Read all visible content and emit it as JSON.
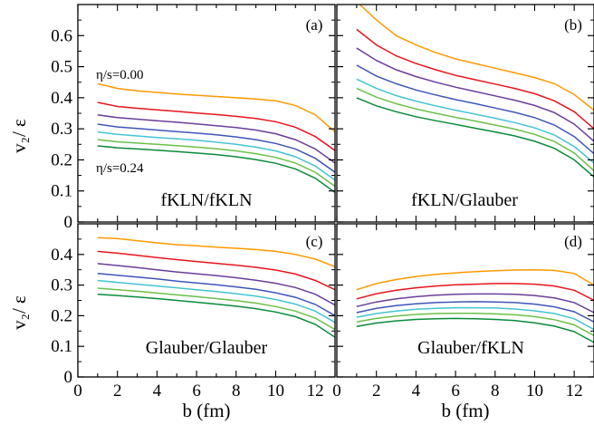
{
  "figure": {
    "xlabel": "b (fm)",
    "ylabel": "v₂/ ε",
    "top_yticks": [
      "0",
      "0.1",
      "0.2",
      "0.3",
      "0.4",
      "0.5",
      "0.6"
    ],
    "bottom_yticks": [
      "0",
      "0.1",
      "0.2",
      "0.3",
      "0.4"
    ],
    "xticks_left": [
      "0",
      "2",
      "4",
      "6",
      "8",
      "10",
      "12"
    ],
    "xticks_right": [
      "0",
      "2",
      "4",
      "6",
      "8",
      "10",
      "12"
    ],
    "eta_top": "η/s=0.00",
    "eta_bottom": "η/s=0.24",
    "series_colors": [
      "#ff9900",
      "#e8141e",
      "#6a3d9a",
      "#3f55b8",
      "#44c4d4",
      "#6cc04a",
      "#0b8a3a"
    ]
  },
  "chart_data": [
    {
      "type": "line",
      "panel": "(a)",
      "name": "fKLN/fKLN",
      "xlim": [
        0,
        13
      ],
      "ylim": [
        0,
        0.7
      ],
      "x": [
        1,
        2,
        3,
        4,
        5,
        6,
        7,
        8,
        9,
        10,
        11,
        12,
        13
      ],
      "series": [
        {
          "values": [
            0.445,
            0.43,
            0.422,
            0.417,
            0.412,
            0.408,
            0.404,
            0.4,
            0.396,
            0.39,
            0.375,
            0.345,
            0.29
          ]
        },
        {
          "values": [
            0.385,
            0.372,
            0.366,
            0.361,
            0.356,
            0.351,
            0.346,
            0.34,
            0.333,
            0.323,
            0.305,
            0.275,
            0.23
          ]
        },
        {
          "values": [
            0.345,
            0.336,
            0.331,
            0.326,
            0.321,
            0.316,
            0.31,
            0.304,
            0.296,
            0.284,
            0.265,
            0.235,
            0.19
          ]
        },
        {
          "values": [
            0.315,
            0.306,
            0.301,
            0.296,
            0.291,
            0.286,
            0.281,
            0.274,
            0.265,
            0.253,
            0.235,
            0.205,
            0.16
          ]
        },
        {
          "values": [
            0.29,
            0.282,
            0.277,
            0.272,
            0.268,
            0.263,
            0.257,
            0.25,
            0.241,
            0.229,
            0.21,
            0.18,
            0.135
          ]
        },
        {
          "values": [
            0.265,
            0.258,
            0.254,
            0.25,
            0.246,
            0.241,
            0.236,
            0.229,
            0.22,
            0.208,
            0.19,
            0.16,
            0.115
          ]
        },
        {
          "values": [
            0.245,
            0.239,
            0.235,
            0.231,
            0.227,
            0.222,
            0.217,
            0.21,
            0.201,
            0.189,
            0.171,
            0.141,
            0.095
          ]
        }
      ]
    },
    {
      "type": "line",
      "panel": "(b)",
      "name": "fKLN/Glauber",
      "xlim": [
        0,
        13
      ],
      "ylim": [
        0,
        0.7
      ],
      "x": [
        1,
        2,
        3,
        4,
        5,
        6,
        7,
        8,
        9,
        10,
        11,
        12,
        13
      ],
      "series": [
        {
          "values": [
            0.71,
            0.65,
            0.6,
            0.57,
            0.545,
            0.525,
            0.51,
            0.495,
            0.48,
            0.465,
            0.445,
            0.41,
            0.36
          ]
        },
        {
          "values": [
            0.62,
            0.57,
            0.535,
            0.51,
            0.49,
            0.472,
            0.458,
            0.444,
            0.43,
            0.413,
            0.39,
            0.355,
            0.3
          ]
        },
        {
          "values": [
            0.56,
            0.52,
            0.49,
            0.468,
            0.45,
            0.434,
            0.42,
            0.406,
            0.392,
            0.375,
            0.352,
            0.315,
            0.26
          ]
        },
        {
          "values": [
            0.505,
            0.47,
            0.445,
            0.425,
            0.409,
            0.394,
            0.381,
            0.367,
            0.353,
            0.336,
            0.312,
            0.275,
            0.22
          ]
        },
        {
          "values": [
            0.46,
            0.43,
            0.407,
            0.389,
            0.374,
            0.36,
            0.347,
            0.334,
            0.32,
            0.303,
            0.28,
            0.243,
            0.19
          ]
        },
        {
          "values": [
            0.43,
            0.402,
            0.381,
            0.364,
            0.35,
            0.337,
            0.325,
            0.312,
            0.299,
            0.282,
            0.259,
            0.222,
            0.165
          ]
        },
        {
          "values": [
            0.4,
            0.374,
            0.355,
            0.339,
            0.326,
            0.314,
            0.302,
            0.29,
            0.277,
            0.26,
            0.237,
            0.2,
            0.145
          ]
        }
      ]
    },
    {
      "type": "line",
      "panel": "(c)",
      "name": "Glauber/Glauber",
      "xlim": [
        0,
        13
      ],
      "ylim": [
        0,
        0.5
      ],
      "x": [
        1,
        2,
        3,
        4,
        5,
        6,
        7,
        8,
        9,
        10,
        11,
        12,
        13
      ],
      "series": [
        {
          "values": [
            0.455,
            0.452,
            0.445,
            0.438,
            0.432,
            0.428,
            0.424,
            0.42,
            0.416,
            0.41,
            0.4,
            0.385,
            0.36
          ]
        },
        {
          "values": [
            0.41,
            0.404,
            0.397,
            0.39,
            0.383,
            0.377,
            0.371,
            0.365,
            0.358,
            0.349,
            0.336,
            0.315,
            0.285
          ]
        },
        {
          "values": [
            0.37,
            0.364,
            0.357,
            0.35,
            0.343,
            0.337,
            0.331,
            0.324,
            0.316,
            0.306,
            0.292,
            0.27,
            0.235
          ]
        },
        {
          "values": [
            0.338,
            0.332,
            0.326,
            0.32,
            0.313,
            0.307,
            0.301,
            0.294,
            0.286,
            0.275,
            0.26,
            0.237,
            0.2
          ]
        },
        {
          "values": [
            0.315,
            0.309,
            0.303,
            0.297,
            0.291,
            0.285,
            0.279,
            0.272,
            0.264,
            0.253,
            0.238,
            0.215,
            0.178
          ]
        },
        {
          "values": [
            0.29,
            0.285,
            0.28,
            0.274,
            0.268,
            0.262,
            0.256,
            0.249,
            0.241,
            0.23,
            0.215,
            0.192,
            0.155
          ]
        },
        {
          "values": [
            0.27,
            0.266,
            0.261,
            0.256,
            0.25,
            0.244,
            0.238,
            0.231,
            0.223,
            0.212,
            0.197,
            0.172,
            0.13
          ]
        }
      ]
    },
    {
      "type": "line",
      "panel": "(d)",
      "name": "Glauber/fKLN",
      "xlim": [
        0,
        13
      ],
      "ylim": [
        0,
        0.5
      ],
      "x": [
        1,
        2,
        3,
        4,
        5,
        6,
        7,
        8,
        9,
        10,
        11,
        12,
        13
      ],
      "series": [
        {
          "values": [
            0.285,
            0.305,
            0.318,
            0.328,
            0.335,
            0.34,
            0.344,
            0.347,
            0.349,
            0.35,
            0.348,
            0.338,
            0.3
          ]
        },
        {
          "values": [
            0.255,
            0.272,
            0.283,
            0.291,
            0.297,
            0.301,
            0.303,
            0.305,
            0.305,
            0.303,
            0.297,
            0.283,
            0.25
          ]
        },
        {
          "values": [
            0.23,
            0.245,
            0.255,
            0.262,
            0.267,
            0.27,
            0.271,
            0.271,
            0.27,
            0.266,
            0.258,
            0.243,
            0.21
          ]
        },
        {
          "values": [
            0.21,
            0.224,
            0.233,
            0.239,
            0.243,
            0.245,
            0.246,
            0.245,
            0.243,
            0.238,
            0.229,
            0.213,
            0.18
          ]
        },
        {
          "values": [
            0.195,
            0.207,
            0.215,
            0.221,
            0.224,
            0.226,
            0.226,
            0.225,
            0.222,
            0.216,
            0.207,
            0.19,
            0.155
          ]
        },
        {
          "values": [
            0.18,
            0.191,
            0.199,
            0.204,
            0.207,
            0.208,
            0.208,
            0.206,
            0.203,
            0.197,
            0.187,
            0.17,
            0.135
          ]
        },
        {
          "values": [
            0.165,
            0.176,
            0.183,
            0.188,
            0.19,
            0.191,
            0.19,
            0.188,
            0.184,
            0.177,
            0.166,
            0.148,
            0.113
          ]
        }
      ]
    }
  ]
}
